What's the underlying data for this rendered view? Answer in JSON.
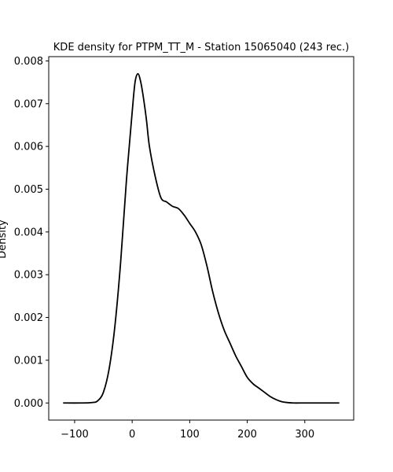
{
  "chart_data": {
    "type": "line",
    "title": "KDE density for PTPM_TT_M - Station 15065040 (243 rec.)",
    "xlabel": "",
    "ylabel": "Density",
    "xlim": [
      -145,
      385
    ],
    "ylim": [
      -0.0004,
      0.0081
    ],
    "xticks": [
      -100,
      0,
      100,
      200,
      300
    ],
    "xtick_labels": [
      "−100",
      "0",
      "100",
      "200",
      "300"
    ],
    "yticks": [
      0.0,
      0.001,
      0.002,
      0.003,
      0.004,
      0.005,
      0.006,
      0.007,
      0.008
    ],
    "ytick_labels": [
      "0.000",
      "0.001",
      "0.002",
      "0.003",
      "0.004",
      "0.005",
      "0.006",
      "0.007",
      "0.008"
    ],
    "grid": false,
    "series": [
      {
        "color": "#000000",
        "x": [
          -120,
          -90,
          -70,
          -60,
          -50,
          -40,
          -30,
          -20,
          -10,
          0,
          5,
          10,
          15,
          20,
          25,
          30,
          40,
          50,
          60,
          70,
          80,
          90,
          100,
          110,
          120,
          130,
          140,
          150,
          160,
          170,
          180,
          190,
          200,
          210,
          220,
          230,
          240,
          250,
          260,
          270,
          280,
          300,
          330,
          360
        ],
        "y": [
          0.0,
          0.0,
          1e-05,
          5e-05,
          0.00025,
          0.0008,
          0.0018,
          0.0033,
          0.0052,
          0.0068,
          0.0075,
          0.0077,
          0.0075,
          0.0071,
          0.0066,
          0.006,
          0.0053,
          0.0048,
          0.0047,
          0.0046,
          0.00455,
          0.0044,
          0.0042,
          0.004,
          0.0037,
          0.0032,
          0.0026,
          0.0021,
          0.0017,
          0.0014,
          0.0011,
          0.00085,
          0.0006,
          0.00045,
          0.00035,
          0.00025,
          0.00015,
          8e-05,
          3e-05,
          1e-05,
          0.0,
          0.0,
          0.0,
          0.0
        ]
      }
    ]
  }
}
